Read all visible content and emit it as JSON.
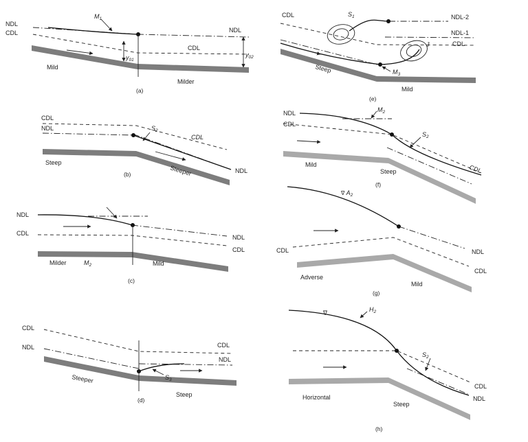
{
  "panel_a": {
    "caption": "(a)",
    "ndl_left": "NDL",
    "cdl_left": "CDL",
    "ndl_right": "NDL",
    "cdl_mid": "CDL",
    "profile": "M",
    "profile_sub": "1",
    "y01": "y",
    "y01_sub": "01",
    "y02": "y",
    "y02_sub": "02",
    "bed_left": "Mild",
    "bed_right": "Milder"
  },
  "panel_b": {
    "caption": "(b)",
    "cdl_left": "CDL",
    "ndl_left": "NDL",
    "cdl_right": "CDL",
    "ndl_right": "NDL",
    "profile": "S",
    "profile_sub": "2",
    "bed_left": "Steep",
    "bed_right": "Steeper"
  },
  "panel_c": {
    "caption": "(c)",
    "ndl_left": "NDL",
    "cdl_left": "CDL",
    "ndl_right": "NDL",
    "cdl_right": "CDL",
    "profile": "M",
    "profile_sub": "2",
    "bed_left": "Milder",
    "bed_right": "Mild"
  },
  "panel_d": {
    "caption": "(d)",
    "cdl_left": "CDL",
    "ndl_left": "NDL",
    "cdl_right": "CDL",
    "ndl_right": "NDL",
    "profile": "S",
    "profile_sub": "3",
    "bed_left": "Steeper",
    "bed_right": "Steep"
  },
  "panel_e": {
    "caption": "(e)",
    "cdl_left": "CDL",
    "ndl2": "NDL-2",
    "ndl1": "NDL-1",
    "cdl_right": "CDL",
    "profile_s": "S",
    "profile_s_sub": "1",
    "profile_m": "M",
    "profile_m_sub": "3",
    "jump": "J",
    "bed_left": "Steep",
    "bed_right": "Mild"
  },
  "panel_f": {
    "caption": "(f)",
    "ndl_left": "NDL",
    "cdl_left": "CDL",
    "cdl_right": "CDL",
    "profile_m": "M",
    "profile_m_sub": "2",
    "profile_s": "S",
    "profile_s_sub": "2",
    "bed_left": "Mild",
    "bed_right": "Steep"
  },
  "panel_g": {
    "caption": "(g)",
    "cdl_left": "CDL",
    "ndl_right": "NDL",
    "cdl_right": "CDL",
    "profile": "A",
    "profile_sub": "2",
    "bed_left": "Adverse",
    "bed_right": "Mild"
  },
  "panel_h": {
    "caption": "(h)",
    "cdl_right": "CDL",
    "ndl_right": "NDL",
    "profile_h": "H",
    "profile_h_sub": "2",
    "profile_s": "S",
    "profile_s_sub": "2",
    "bed_left": "Horizontal",
    "bed_right": "Steep"
  },
  "colors": {
    "bed": "#7d7d7d",
    "bed_light": "#a9a9a9",
    "line": "#222222"
  }
}
